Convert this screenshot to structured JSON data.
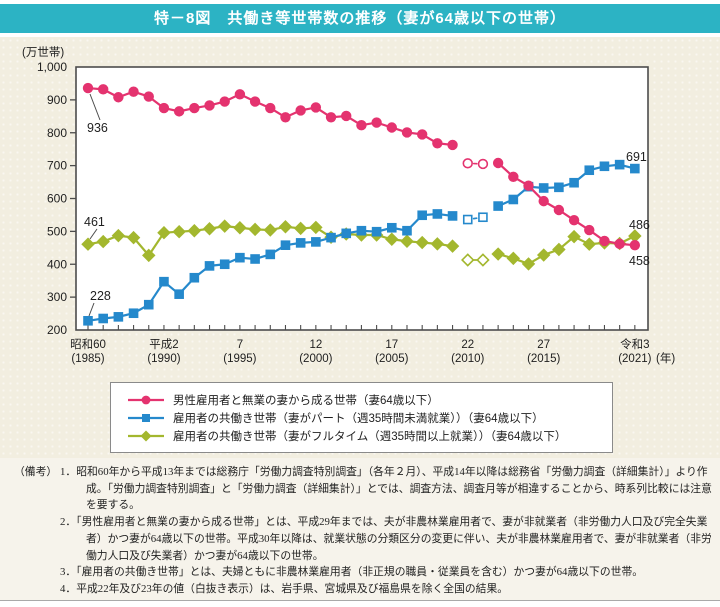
{
  "header": {
    "title": "特－8図　共働き等世帯数の推移（妻が64歳以下の世帯）"
  },
  "chart_data": {
    "type": "line",
    "y_unit": "(万世帯)",
    "ylim": [
      200,
      1000
    ],
    "ytick_step": 100,
    "x_start": 1985,
    "x_end": 2021,
    "x_axis_suffix": "(年)",
    "x_ticks": [
      {
        "x": 1985,
        "era": "昭和60",
        "west": "(1985)"
      },
      {
        "x": 1990,
        "era": "平成2",
        "west": "(1990)"
      },
      {
        "x": 1995,
        "era": "7",
        "west": "(1995)"
      },
      {
        "x": 2000,
        "era": "12",
        "west": "(2000)"
      },
      {
        "x": 2005,
        "era": "17",
        "west": "(2005)"
      },
      {
        "x": 2010,
        "era": "22",
        "west": "(2010)"
      },
      {
        "x": 2015,
        "era": "27",
        "west": "(2015)"
      },
      {
        "x": 2021,
        "era": "令和3",
        "west": "(2021)"
      }
    ],
    "open_value_years": [
      2010,
      2011
    ],
    "series": [
      {
        "key": "fulltime-wife",
        "name": "雇用者の共働き世帯（妻がフルタイム（週35時間以上就業））（妻64歳以下）",
        "marker": "diamond",
        "color": "#a3b72e",
        "start_label": "461",
        "end_label": "486",
        "values": [
          461,
          469,
          487,
          481,
          427,
          496,
          499,
          502,
          508,
          516,
          511,
          506,
          504,
          514,
          509,
          512,
          482,
          492,
          489,
          489,
          476,
          470,
          466,
          462,
          455,
          413,
          413,
          431,
          418,
          401,
          428,
          445,
          484,
          461,
          465,
          463,
          486
        ]
      },
      {
        "key": "part-time-wife",
        "name": "雇用者の共働き世帯（妻がパート（週35時間未満就業））（妻64歳以下）",
        "marker": "square",
        "color": "#2589cc",
        "start_label": "228",
        "end_label": "691",
        "values": [
          228,
          235,
          240,
          251,
          277,
          347,
          309,
          359,
          395,
          400,
          420,
          416,
          430,
          458,
          465,
          468,
          481,
          494,
          502,
          499,
          511,
          502,
          549,
          553,
          547,
          536,
          543,
          577,
          597,
          636,
          632,
          634,
          648,
          686,
          698,
          703,
          691
        ]
      },
      {
        "key": "non-working-wife",
        "name": "男性雇用者と無業の妻から成る世帯（妻64歳以下）",
        "marker": "circle",
        "color": "#e4336f",
        "start_label": "936",
        "end_label": "458",
        "values": [
          936,
          932,
          908,
          925,
          910,
          875,
          865,
          875,
          883,
          895,
          917,
          895,
          875,
          847,
          868,
          877,
          847,
          851,
          823,
          831,
          816,
          801,
          795,
          768,
          763,
          707,
          705,
          708,
          666,
          639,
          592,
          565,
          534,
          504,
          471,
          462,
          458
        ]
      }
    ],
    "legend_order": [
      "non-working-wife",
      "part-time-wife",
      "fulltime-wife"
    ]
  },
  "notes": {
    "heading": "（備考）",
    "items": [
      {
        "num": "1．",
        "text": "昭和60年から平成13年までは総務庁「労働力調査特別調査」（各年２月）、平成14年以降は総務省「労働力調査（詳細集計）」より作成。「労働力調査特別調査」と「労働力調査（詳細集計）」とでは、調査方法、調査月等が相違することから、時系列比較には注意を要する。"
      },
      {
        "num": "2．",
        "text": "「男性雇用者と無業の妻から成る世帯」とは、平成29年までは、夫が非農林業雇用者で、妻が非就業者（非労働力人口及び完全失業者）かつ妻が64歳以下の世帯。平成30年以降は、就業状態の分類区分の変更に伴い、夫が非農林業雇用者で、妻が非就業者（非労働力人口及び失業者）かつ妻が64歳以下の世帯。"
      },
      {
        "num": "3．",
        "text": "「雇用者の共働き世帯」とは、夫婦ともに非農林業雇用者（非正規の職員・従業員を含む）かつ妻が64歳以下の世帯。"
      },
      {
        "num": "4．",
        "text": "平成22年及び23年の値（白抜き表示）は、岩手県、宮城県及び福島県を除く全国の結果。"
      }
    ]
  }
}
